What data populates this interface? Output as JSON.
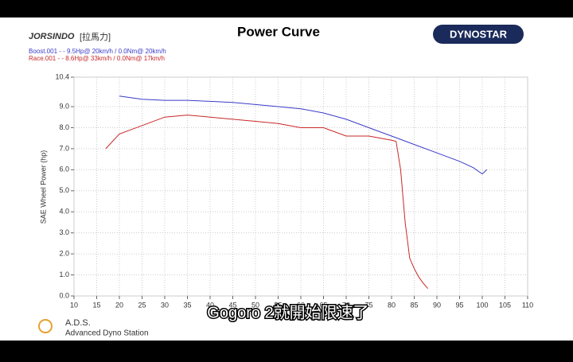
{
  "chart_data": {
    "type": "line",
    "title": "Power Curve",
    "header_label": "[拉馬力]",
    "logo_left": "JORSINDO",
    "logo_right": "DYNOSTAR",
    "footer_title": "A.D.S.",
    "footer_subtitle": "Advanced Dyno Station",
    "caption": "Gogoro 2就開始限速了",
    "y_label": "SAE Wheel Power (hp)",
    "xlim": [
      10,
      110
    ],
    "xticks": [
      10,
      15,
      20,
      25,
      30,
      35,
      40,
      45,
      50,
      55,
      60,
      65,
      70,
      75,
      80,
      85,
      90,
      95,
      100,
      105,
      110
    ],
    "ylim": [
      0,
      10.4
    ],
    "yticks": [
      {
        "value": 0,
        "label": "0.0"
      },
      {
        "value": 1,
        "label": "1.0"
      },
      {
        "value": 2,
        "label": "2.0"
      },
      {
        "value": 3,
        "label": "3.0"
      },
      {
        "value": 4,
        "label": "4.0"
      },
      {
        "value": 5,
        "label": "5.0"
      },
      {
        "value": 6,
        "label": "6.0"
      },
      {
        "value": 7,
        "label": "7.0"
      },
      {
        "value": 8,
        "label": "8.0"
      },
      {
        "value": 9,
        "label": "9.0"
      },
      {
        "value": 10.4,
        "label": "10.4"
      }
    ],
    "grid": true,
    "series": [
      {
        "name": "Boost.001 - - 9.5Hp@ 20km/h / 0.0Nm@ 20km/h",
        "color": "#3b3bc8",
        "x": [
          20,
          25,
          30,
          35,
          40,
          45,
          50,
          55,
          60,
          65,
          70,
          75,
          80,
          85,
          90,
          95,
          98,
          100,
          101
        ],
        "values": [
          9.5,
          9.35,
          9.3,
          9.3,
          9.25,
          9.2,
          9.1,
          9.0,
          8.9,
          8.7,
          8.4,
          8.0,
          7.6,
          7.2,
          6.8,
          6.4,
          6.1,
          5.8,
          6.0
        ]
      },
      {
        "name": "Race.001 - - 8.6Hp@ 33km/h / 0.0Nm@ 17km/h",
        "color": "#c82828",
        "x": [
          17,
          20,
          25,
          30,
          35,
          40,
          45,
          50,
          55,
          60,
          65,
          70,
          75,
          80,
          81,
          82,
          83,
          84,
          85,
          86,
          87,
          88
        ],
        "values": [
          7.0,
          7.7,
          8.1,
          8.5,
          8.6,
          8.5,
          8.4,
          8.3,
          8.2,
          8.0,
          8.0,
          7.6,
          7.6,
          7.4,
          7.35,
          6.0,
          3.5,
          1.8,
          1.3,
          0.9,
          0.6,
          0.35
        ]
      }
    ]
  }
}
